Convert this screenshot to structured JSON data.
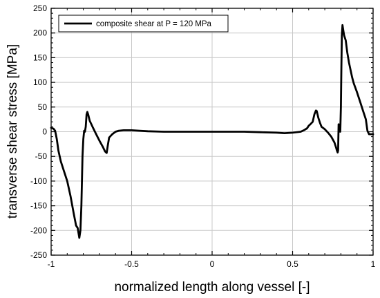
{
  "chart_data": {
    "type": "line",
    "xlabel": "normalized length along vessel [-]",
    "ylabel": "transverse shear stress [MPa]",
    "xlim": [
      -1,
      1
    ],
    "ylim": [
      -250,
      250
    ],
    "x_ticks": [
      -1,
      -0.5,
      0,
      0.5,
      1
    ],
    "x_tick_labels": [
      "-1",
      "-0.5",
      "0",
      "0.5",
      "1"
    ],
    "y_ticks": [
      -250,
      -200,
      -150,
      -100,
      -50,
      0,
      50,
      100,
      150,
      200,
      250
    ],
    "y_tick_labels": [
      "-250",
      "-200",
      "-150",
      "-100",
      "-50",
      "0",
      "50",
      "100",
      "150",
      "200",
      "250"
    ],
    "grid": true,
    "legend_position": "top-left",
    "colors": {
      "series": "#000000",
      "grid": "#c8c8c8"
    },
    "series": [
      {
        "name": "composite shear at P = 120 MPa",
        "x": [
          -1.0,
          -0.985,
          -0.975,
          -0.965,
          -0.955,
          -0.94,
          -0.92,
          -0.9,
          -0.88,
          -0.86,
          -0.845,
          -0.835,
          -0.825,
          -0.818,
          -0.812,
          -0.805,
          -0.8,
          -0.795,
          -0.79,
          -0.785,
          -0.78,
          -0.775,
          -0.77,
          -0.765,
          -0.76,
          -0.75,
          -0.74,
          -0.72,
          -0.7,
          -0.68,
          -0.665,
          -0.655,
          -0.648,
          -0.64,
          -0.62,
          -0.6,
          -0.58,
          -0.55,
          -0.5,
          -0.45,
          -0.4,
          -0.3,
          -0.2,
          -0.1,
          0.0,
          0.1,
          0.2,
          0.3,
          0.4,
          0.45,
          0.5,
          0.55,
          0.57,
          0.59,
          0.6,
          0.61,
          0.625,
          0.635,
          0.645,
          0.65,
          0.655,
          0.66,
          0.67,
          0.68,
          0.7,
          0.72,
          0.74,
          0.76,
          0.77,
          0.775,
          0.78,
          0.783,
          0.786,
          0.79,
          0.793,
          0.796,
          0.8,
          0.803,
          0.806,
          0.81,
          0.815,
          0.82,
          0.83,
          0.84,
          0.85,
          0.86,
          0.87,
          0.88,
          0.9,
          0.92,
          0.94,
          0.955,
          0.965,
          0.975,
          0.985,
          1.0
        ],
        "values": [
          8,
          6,
          2,
          -15,
          -38,
          -60,
          -80,
          -100,
          -130,
          -165,
          -190,
          -195,
          -215,
          -200,
          -150,
          -50,
          -15,
          2,
          0,
          10,
          35,
          40,
          35,
          28,
          22,
          15,
          8,
          -5,
          -18,
          -30,
          -40,
          -43,
          -28,
          -12,
          -5,
          0,
          2,
          3,
          3,
          2,
          1,
          0,
          0,
          0,
          0,
          0,
          0,
          -1,
          -2,
          -3,
          -2,
          0,
          3,
          7,
          12,
          15,
          20,
          35,
          43,
          42,
          35,
          28,
          18,
          10,
          5,
          -2,
          -10,
          -22,
          -32,
          -38,
          -42,
          -38,
          15,
          2,
          15,
          0,
          50,
          130,
          195,
          216,
          205,
          195,
          185,
          160,
          140,
          125,
          110,
          98,
          80,
          60,
          40,
          25,
          2,
          -5,
          -5,
          -5
        ]
      }
    ]
  }
}
